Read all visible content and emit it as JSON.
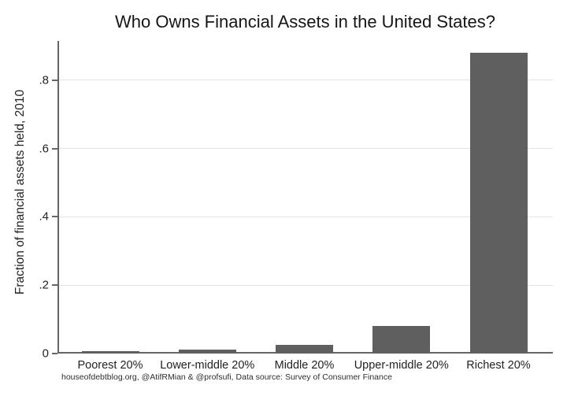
{
  "chart_data": {
    "type": "bar",
    "title": "Who Owns Financial Assets in the United States?",
    "ylabel": "Fraction of financial assets held, 2010",
    "xlabel": "",
    "categories": [
      "Poorest 20%",
      "Lower-middle 20%",
      "Middle 20%",
      "Upper-middle 20%",
      "Richest 20%"
    ],
    "values": [
      0.006,
      0.011,
      0.026,
      0.081,
      0.881
    ],
    "ylim": [
      0,
      0.915
    ],
    "yticks": [
      0,
      0.2,
      0.4,
      0.6,
      0.8
    ],
    "ytick_labels": [
      "0",
      ".2",
      ".4",
      ".6",
      ".8"
    ],
    "grid": true,
    "legend": "none",
    "source_note": "houseofdebtblog.org, @AtifRMian & @profsufi, Data source: Survey of Consumer Finance"
  },
  "colors": {
    "bar": "#5f5f5f",
    "axis": "#666666",
    "grid": "#e4e4e4",
    "background": "#ffffff"
  }
}
